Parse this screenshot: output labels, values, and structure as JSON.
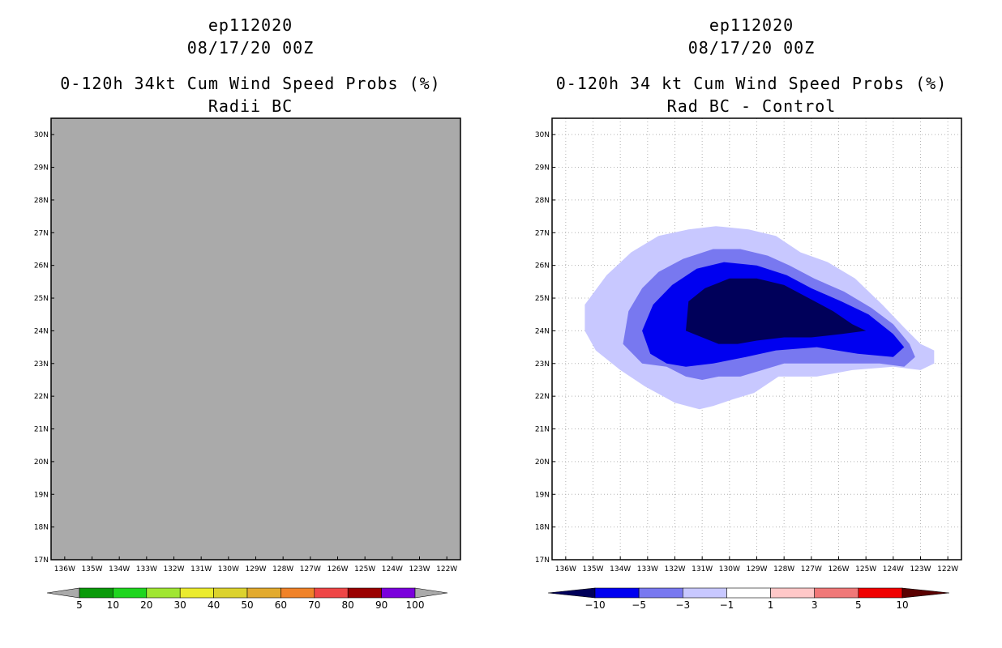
{
  "chart_data": [
    {
      "type": "heatmap",
      "storm_id": "ep112020",
      "date": "08/17/20 00Z",
      "title": "0-120h 34kt Cum Wind Speed Probs (%)",
      "subtitle": "Radii BC",
      "x_ticks": [
        "136W",
        "135W",
        "134W",
        "133W",
        "132W",
        "131W",
        "130W",
        "129W",
        "128W",
        "127W",
        "126W",
        "125W",
        "124W",
        "123W",
        "122W"
      ],
      "y_ticks": [
        "17N",
        "18N",
        "19N",
        "20N",
        "21N",
        "22N",
        "23N",
        "24N",
        "25N",
        "26N",
        "27N",
        "28N",
        "29N",
        "30N"
      ],
      "xlim": [
        -136.5,
        -121.5
      ],
      "ylim": [
        17,
        30.5
      ],
      "grid": false,
      "field": "no data (uniform fill)",
      "fill_color": "#aaaaaa",
      "colorbar": {
        "labels": [
          "5",
          "10",
          "20",
          "30",
          "40",
          "50",
          "60",
          "70",
          "80",
          "90",
          "100"
        ],
        "colors": [
          "#aaaaaa",
          "#0a9a0a",
          "#1ed51e",
          "#a0e632",
          "#ebeb2d",
          "#dcd22d",
          "#e2aa2e",
          "#f08228",
          "#ef4646",
          "#9a0000",
          "#7a00dc",
          "#aaaaaa"
        ]
      }
    },
    {
      "type": "heatmap",
      "storm_id": "ep112020",
      "date": "08/17/20 00Z",
      "title": "0-120h 34 kt Cum Wind Speed Probs (%)",
      "subtitle": "Rad BC - Control",
      "x_ticks": [
        "136W",
        "135W",
        "134W",
        "133W",
        "132W",
        "131W",
        "130W",
        "129W",
        "128W",
        "127W",
        "126W",
        "125W",
        "124W",
        "123W",
        "122W"
      ],
      "y_ticks": [
        "17N",
        "18N",
        "19N",
        "20N",
        "21N",
        "22N",
        "23N",
        "24N",
        "25N",
        "26N",
        "27N",
        "28N",
        "29N",
        "30N"
      ],
      "xlim": [
        -136.5,
        -121.5
      ],
      "ylim": [
        17,
        30.5
      ],
      "grid": true,
      "contours": [
        {
          "level": "-1 to -3",
          "color": "#c8c8ff",
          "points": [
            [
              -135.3,
              24.0
            ],
            [
              -135.3,
              24.8
            ],
            [
              -134.5,
              25.7
            ],
            [
              -133.6,
              26.4
            ],
            [
              -132.6,
              26.9
            ],
            [
              -131.5,
              27.1
            ],
            [
              -130.5,
              27.2
            ],
            [
              -129.3,
              27.1
            ],
            [
              -128.3,
              26.9
            ],
            [
              -127.4,
              26.4
            ],
            [
              -126.4,
              26.1
            ],
            [
              -125.4,
              25.6
            ],
            [
              -124.4,
              24.8
            ],
            [
              -123.6,
              24.1
            ],
            [
              -123.0,
              23.6
            ],
            [
              -122.5,
              23.4
            ],
            [
              -122.5,
              23.0
            ],
            [
              -123.0,
              22.8
            ],
            [
              -124.0,
              22.9
            ],
            [
              -125.5,
              22.8
            ],
            [
              -126.8,
              22.6
            ],
            [
              -128.2,
              22.6
            ],
            [
              -129.1,
              22.1
            ],
            [
              -129.9,
              21.9
            ],
            [
              -130.6,
              21.7
            ],
            [
              -131.1,
              21.6
            ],
            [
              -132.0,
              21.8
            ],
            [
              -133.1,
              22.3
            ],
            [
              -134.0,
              22.8
            ],
            [
              -134.9,
              23.4
            ],
            [
              -135.3,
              24.0
            ]
          ]
        },
        {
          "level": "-3 to -5",
          "color": "#7878f0",
          "points": [
            [
              -133.9,
              23.6
            ],
            [
              -133.7,
              24.6
            ],
            [
              -133.2,
              25.3
            ],
            [
              -132.6,
              25.8
            ],
            [
              -131.7,
              26.2
            ],
            [
              -130.6,
              26.5
            ],
            [
              -129.6,
              26.5
            ],
            [
              -128.6,
              26.3
            ],
            [
              -127.8,
              26.0
            ],
            [
              -126.9,
              25.6
            ],
            [
              -125.8,
              25.2
            ],
            [
              -124.8,
              24.7
            ],
            [
              -124.0,
              24.2
            ],
            [
              -123.4,
              23.6
            ],
            [
              -123.2,
              23.2
            ],
            [
              -123.6,
              22.9
            ],
            [
              -124.5,
              23.0
            ],
            [
              -125.6,
              23.0
            ],
            [
              -126.8,
              23.0
            ],
            [
              -128.0,
              23.0
            ],
            [
              -128.8,
              22.8
            ],
            [
              -129.6,
              22.6
            ],
            [
              -130.4,
              22.6
            ],
            [
              -131.0,
              22.5
            ],
            [
              -131.6,
              22.6
            ],
            [
              -132.3,
              22.9
            ],
            [
              -133.2,
              23.0
            ],
            [
              -133.9,
              23.6
            ]
          ]
        },
        {
          "level": "-5 to -10",
          "color": "#0000f0",
          "points": [
            [
              -133.2,
              24.0
            ],
            [
              -132.8,
              24.8
            ],
            [
              -132.1,
              25.4
            ],
            [
              -131.2,
              25.9
            ],
            [
              -130.2,
              26.1
            ],
            [
              -129.0,
              26.0
            ],
            [
              -127.9,
              25.7
            ],
            [
              -127.0,
              25.3
            ],
            [
              -125.9,
              24.9
            ],
            [
              -124.9,
              24.5
            ],
            [
              -124.0,
              23.9
            ],
            [
              -123.6,
              23.5
            ],
            [
              -124.0,
              23.2
            ],
            [
              -125.3,
              23.3
            ],
            [
              -126.8,
              23.5
            ],
            [
              -128.3,
              23.4
            ],
            [
              -129.4,
              23.2
            ],
            [
              -130.6,
              23.0
            ],
            [
              -131.6,
              22.9
            ],
            [
              -132.3,
              23.0
            ],
            [
              -132.9,
              23.3
            ],
            [
              -133.2,
              24.0
            ]
          ]
        },
        {
          "level": "< -10",
          "color": "#00005a",
          "points": [
            [
              -131.6,
              24.0
            ],
            [
              -131.5,
              24.9
            ],
            [
              -130.9,
              25.3
            ],
            [
              -130.0,
              25.6
            ],
            [
              -129.0,
              25.6
            ],
            [
              -128.0,
              25.4
            ],
            [
              -127.1,
              25.0
            ],
            [
              -126.2,
              24.6
            ],
            [
              -125.5,
              24.2
            ],
            [
              -125.0,
              24.0
            ],
            [
              -125.9,
              23.9
            ],
            [
              -127.0,
              23.8
            ],
            [
              -128.0,
              23.8
            ],
            [
              -129.0,
              23.7
            ],
            [
              -129.7,
              23.6
            ],
            [
              -130.4,
              23.6
            ],
            [
              -131.0,
              23.8
            ],
            [
              -131.6,
              24.0
            ]
          ]
        }
      ],
      "colorbar": {
        "labels": [
          "-10",
          "-5",
          "-3",
          "-1",
          "1",
          "3",
          "5",
          "10"
        ],
        "colors": [
          "#00005a",
          "#0000f0",
          "#7878f0",
          "#c8c8ff",
          "#ffffff",
          "#ffc8c8",
          "#f07878",
          "#f00000",
          "#5a0000"
        ]
      }
    }
  ]
}
